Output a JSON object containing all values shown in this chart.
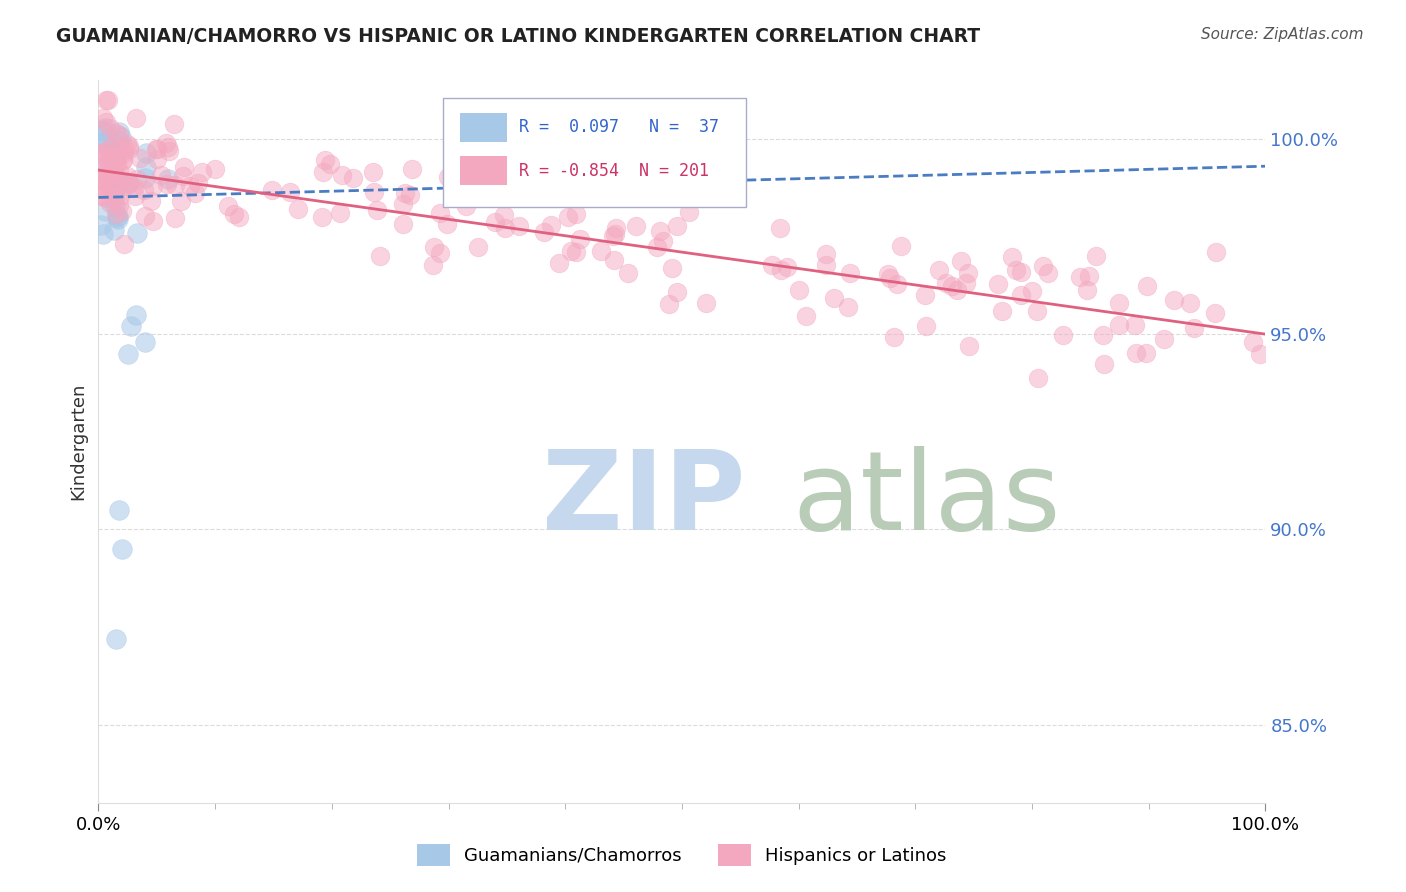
{
  "title": "GUAMANIAN/CHAMORRO VS HISPANIC OR LATINO KINDERGARTEN CORRELATION CHART",
  "source": "Source: ZipAtlas.com",
  "ylabel": "Kindergarten",
  "xlim": [
    0.0,
    100.0
  ],
  "ylim": [
    83.0,
    101.5
  ],
  "yticks": [
    85.0,
    90.0,
    95.0,
    100.0
  ],
  "ytick_labels": [
    "85.0%",
    "90.0%",
    "95.0%",
    "100.0%"
  ],
  "xtick_labels": [
    "0.0%",
    "100.0%"
  ],
  "blue_R": 0.097,
  "blue_N": 37,
  "pink_R": -0.854,
  "pink_N": 201,
  "blue_color": "#a8c8e8",
  "pink_color": "#f4a8c0",
  "blue_line_color": "#4a7cc4",
  "pink_line_color": "#e06080",
  "watermark_zip_color": "#c5d8ee",
  "watermark_atlas_color": "#b8ccb8",
  "background_color": "#ffffff",
  "grid_color": "#cccccc",
  "blue_line_start_y": 98.5,
  "blue_line_end_y": 99.3,
  "pink_line_start_y": 99.2,
  "pink_line_end_y": 95.0
}
